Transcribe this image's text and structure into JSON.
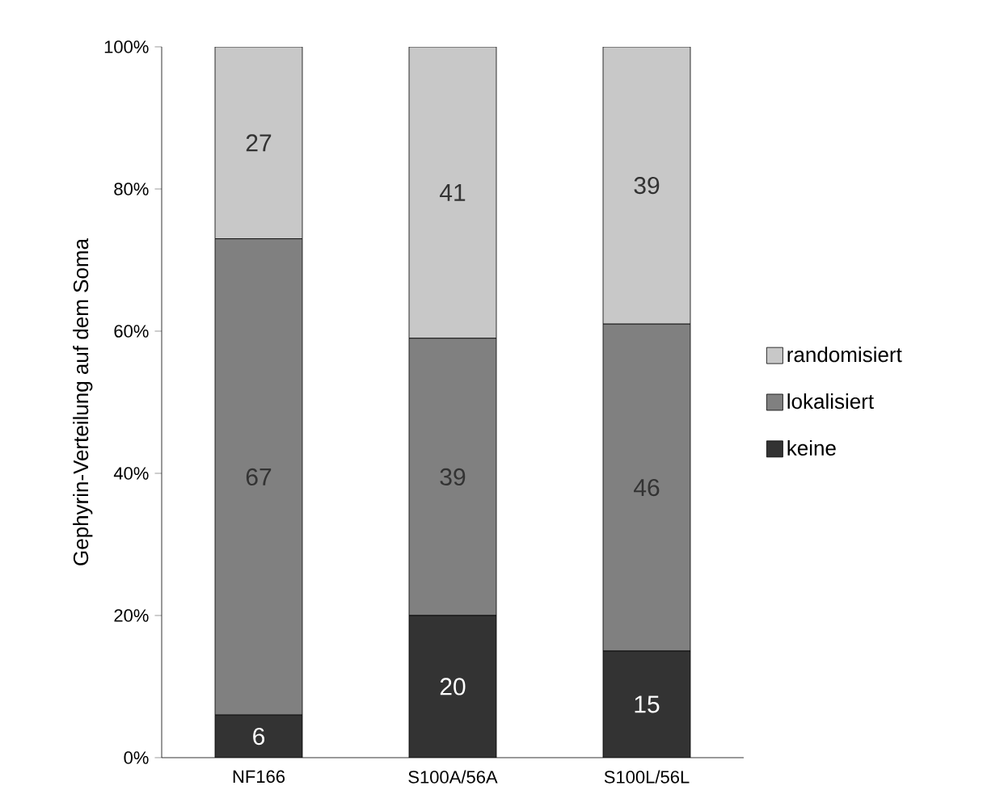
{
  "chart_data": {
    "type": "bar",
    "stacked": true,
    "ylabel": "Gephyrin-Verteilung auf dem Soma",
    "categories": [
      "NF166",
      "S100A/56A",
      "S100L/56L"
    ],
    "series": [
      {
        "name": "keine",
        "color": "#333333",
        "values": [
          6,
          20,
          15
        ]
      },
      {
        "name": "lokalisiert",
        "color": "#808080",
        "values": [
          67,
          39,
          46
        ]
      },
      {
        "name": "randomisiert",
        "color": "#c8c8c8",
        "values": [
          27,
          41,
          39
        ]
      }
    ],
    "ylim": [
      0,
      100
    ],
    "yticks": [
      {
        "value": 0,
        "label": "0%"
      },
      {
        "value": 20,
        "label": "20%"
      },
      {
        "value": 40,
        "label": "40%"
      },
      {
        "value": 60,
        "label": "60%"
      },
      {
        "value": 80,
        "label": "80%"
      },
      {
        "value": 100,
        "label": "100%"
      }
    ],
    "data_labels": true,
    "legend": "right",
    "grid": false
  }
}
